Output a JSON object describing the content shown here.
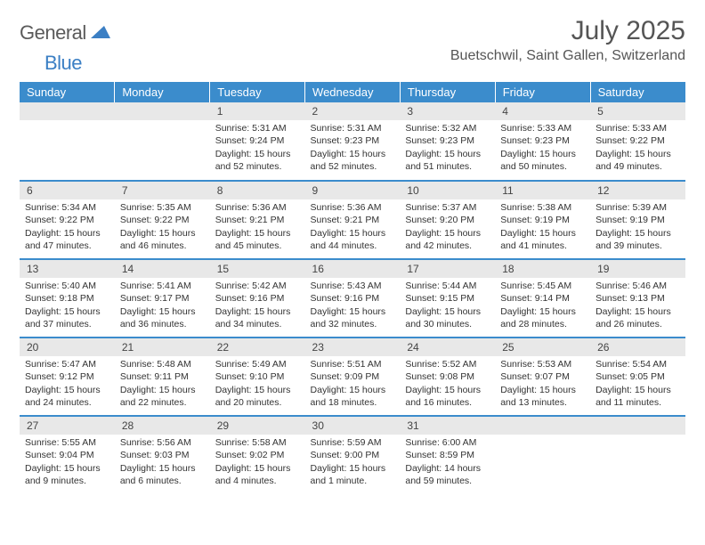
{
  "logo": {
    "text1": "General",
    "text2": "Blue"
  },
  "title": "July 2025",
  "location": "Buetschwil, Saint Gallen, Switzerland",
  "colors": {
    "header_bg": "#3b8ccc",
    "header_fg": "#ffffff",
    "daynum_bg": "#e8e8e8",
    "border": "#3b8ccc",
    "text": "#333333",
    "logo_gray": "#5a5a5a",
    "logo_blue": "#3b7fc4"
  },
  "day_headers": [
    "Sunday",
    "Monday",
    "Tuesday",
    "Wednesday",
    "Thursday",
    "Friday",
    "Saturday"
  ],
  "weeks": [
    [
      null,
      null,
      {
        "n": "1",
        "sr": "5:31 AM",
        "ss": "9:24 PM",
        "dl": "15 hours and 52 minutes."
      },
      {
        "n": "2",
        "sr": "5:31 AM",
        "ss": "9:23 PM",
        "dl": "15 hours and 52 minutes."
      },
      {
        "n": "3",
        "sr": "5:32 AM",
        "ss": "9:23 PM",
        "dl": "15 hours and 51 minutes."
      },
      {
        "n": "4",
        "sr": "5:33 AM",
        "ss": "9:23 PM",
        "dl": "15 hours and 50 minutes."
      },
      {
        "n": "5",
        "sr": "5:33 AM",
        "ss": "9:22 PM",
        "dl": "15 hours and 49 minutes."
      }
    ],
    [
      {
        "n": "6",
        "sr": "5:34 AM",
        "ss": "9:22 PM",
        "dl": "15 hours and 47 minutes."
      },
      {
        "n": "7",
        "sr": "5:35 AM",
        "ss": "9:22 PM",
        "dl": "15 hours and 46 minutes."
      },
      {
        "n": "8",
        "sr": "5:36 AM",
        "ss": "9:21 PM",
        "dl": "15 hours and 45 minutes."
      },
      {
        "n": "9",
        "sr": "5:36 AM",
        "ss": "9:21 PM",
        "dl": "15 hours and 44 minutes."
      },
      {
        "n": "10",
        "sr": "5:37 AM",
        "ss": "9:20 PM",
        "dl": "15 hours and 42 minutes."
      },
      {
        "n": "11",
        "sr": "5:38 AM",
        "ss": "9:19 PM",
        "dl": "15 hours and 41 minutes."
      },
      {
        "n": "12",
        "sr": "5:39 AM",
        "ss": "9:19 PM",
        "dl": "15 hours and 39 minutes."
      }
    ],
    [
      {
        "n": "13",
        "sr": "5:40 AM",
        "ss": "9:18 PM",
        "dl": "15 hours and 37 minutes."
      },
      {
        "n": "14",
        "sr": "5:41 AM",
        "ss": "9:17 PM",
        "dl": "15 hours and 36 minutes."
      },
      {
        "n": "15",
        "sr": "5:42 AM",
        "ss": "9:16 PM",
        "dl": "15 hours and 34 minutes."
      },
      {
        "n": "16",
        "sr": "5:43 AM",
        "ss": "9:16 PM",
        "dl": "15 hours and 32 minutes."
      },
      {
        "n": "17",
        "sr": "5:44 AM",
        "ss": "9:15 PM",
        "dl": "15 hours and 30 minutes."
      },
      {
        "n": "18",
        "sr": "5:45 AM",
        "ss": "9:14 PM",
        "dl": "15 hours and 28 minutes."
      },
      {
        "n": "19",
        "sr": "5:46 AM",
        "ss": "9:13 PM",
        "dl": "15 hours and 26 minutes."
      }
    ],
    [
      {
        "n": "20",
        "sr": "5:47 AM",
        "ss": "9:12 PM",
        "dl": "15 hours and 24 minutes."
      },
      {
        "n": "21",
        "sr": "5:48 AM",
        "ss": "9:11 PM",
        "dl": "15 hours and 22 minutes."
      },
      {
        "n": "22",
        "sr": "5:49 AM",
        "ss": "9:10 PM",
        "dl": "15 hours and 20 minutes."
      },
      {
        "n": "23",
        "sr": "5:51 AM",
        "ss": "9:09 PM",
        "dl": "15 hours and 18 minutes."
      },
      {
        "n": "24",
        "sr": "5:52 AM",
        "ss": "9:08 PM",
        "dl": "15 hours and 16 minutes."
      },
      {
        "n": "25",
        "sr": "5:53 AM",
        "ss": "9:07 PM",
        "dl": "15 hours and 13 minutes."
      },
      {
        "n": "26",
        "sr": "5:54 AM",
        "ss": "9:05 PM",
        "dl": "15 hours and 11 minutes."
      }
    ],
    [
      {
        "n": "27",
        "sr": "5:55 AM",
        "ss": "9:04 PM",
        "dl": "15 hours and 9 minutes."
      },
      {
        "n": "28",
        "sr": "5:56 AM",
        "ss": "9:03 PM",
        "dl": "15 hours and 6 minutes."
      },
      {
        "n": "29",
        "sr": "5:58 AM",
        "ss": "9:02 PM",
        "dl": "15 hours and 4 minutes."
      },
      {
        "n": "30",
        "sr": "5:59 AM",
        "ss": "9:00 PM",
        "dl": "15 hours and 1 minute."
      },
      {
        "n": "31",
        "sr": "6:00 AM",
        "ss": "8:59 PM",
        "dl": "14 hours and 59 minutes."
      },
      null,
      null
    ]
  ],
  "labels": {
    "sunrise": "Sunrise: ",
    "sunset": "Sunset: ",
    "daylight": "Daylight: "
  }
}
